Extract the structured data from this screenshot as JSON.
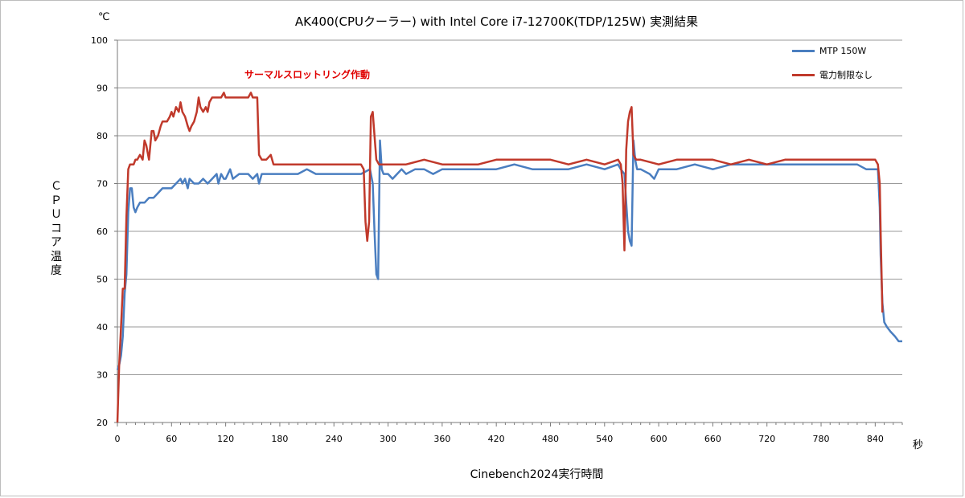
{
  "chart_data": {
    "type": "line",
    "title": "AK400(CPUクーラー) with Intel Core i7-12700K(TDP/125W) 実測結果",
    "xlabel": "Cinebench2024実行時間",
    "ylabel": "ＣＰＵコア温度",
    "x_unit": "秒",
    "y_unit": "℃",
    "xlim": [
      0,
      870
    ],
    "ylim": [
      20,
      100
    ],
    "x_ticks": [
      0,
      60,
      120,
      180,
      240,
      300,
      360,
      420,
      480,
      540,
      600,
      660,
      720,
      780,
      840
    ],
    "y_ticks": [
      20,
      30,
      40,
      50,
      60,
      70,
      80,
      90,
      100
    ],
    "grid": "horizontal",
    "legend_position": "top-right",
    "annotation": "サーマルスロットリング作動",
    "annotation_color": "#e00000",
    "series": [
      {
        "name": "MTP 150W",
        "color": "#4a7ec0",
        "points": [
          [
            0,
            31
          ],
          [
            2,
            32
          ],
          [
            4,
            34
          ],
          [
            6,
            38
          ],
          [
            8,
            47
          ],
          [
            10,
            51
          ],
          [
            12,
            64
          ],
          [
            14,
            69
          ],
          [
            16,
            69
          ],
          [
            18,
            65
          ],
          [
            20,
            64
          ],
          [
            22,
            65
          ],
          [
            25,
            66
          ],
          [
            30,
            66
          ],
          [
            35,
            67
          ],
          [
            40,
            67
          ],
          [
            45,
            68
          ],
          [
            50,
            69
          ],
          [
            55,
            69
          ],
          [
            60,
            69
          ],
          [
            65,
            70
          ],
          [
            70,
            71
          ],
          [
            72,
            70
          ],
          [
            75,
            71
          ],
          [
            78,
            69
          ],
          [
            80,
            71
          ],
          [
            85,
            70
          ],
          [
            90,
            70
          ],
          [
            95,
            71
          ],
          [
            100,
            70
          ],
          [
            105,
            71
          ],
          [
            110,
            72
          ],
          [
            112,
            70
          ],
          [
            115,
            72
          ],
          [
            118,
            71
          ],
          [
            120,
            71
          ],
          [
            125,
            73
          ],
          [
            128,
            71
          ],
          [
            135,
            72
          ],
          [
            145,
            72
          ],
          [
            150,
            71
          ],
          [
            155,
            72
          ],
          [
            157,
            70
          ],
          [
            160,
            72
          ],
          [
            170,
            72
          ],
          [
            180,
            72
          ],
          [
            190,
            72
          ],
          [
            200,
            72
          ],
          [
            210,
            73
          ],
          [
            220,
            72
          ],
          [
            240,
            72
          ],
          [
            260,
            72
          ],
          [
            270,
            72
          ],
          [
            280,
            73
          ],
          [
            283,
            70
          ],
          [
            285,
            60
          ],
          [
            287,
            51
          ],
          [
            289,
            50
          ],
          [
            291,
            79
          ],
          [
            293,
            73
          ],
          [
            295,
            72
          ],
          [
            300,
            72
          ],
          [
            305,
            71
          ],
          [
            310,
            72
          ],
          [
            315,
            73
          ],
          [
            320,
            72
          ],
          [
            330,
            73
          ],
          [
            340,
            73
          ],
          [
            350,
            72
          ],
          [
            360,
            73
          ],
          [
            380,
            73
          ],
          [
            400,
            73
          ],
          [
            420,
            73
          ],
          [
            440,
            74
          ],
          [
            460,
            73
          ],
          [
            480,
            73
          ],
          [
            500,
            73
          ],
          [
            520,
            74
          ],
          [
            540,
            73
          ],
          [
            555,
            74
          ],
          [
            558,
            73
          ],
          [
            562,
            72
          ],
          [
            566,
            60
          ],
          [
            568,
            58
          ],
          [
            570,
            57
          ],
          [
            572,
            79
          ],
          [
            574,
            75
          ],
          [
            576,
            73
          ],
          [
            580,
            73
          ],
          [
            590,
            72
          ],
          [
            595,
            71
          ],
          [
            600,
            73
          ],
          [
            620,
            73
          ],
          [
            640,
            74
          ],
          [
            660,
            73
          ],
          [
            680,
            74
          ],
          [
            700,
            74
          ],
          [
            720,
            74
          ],
          [
            740,
            74
          ],
          [
            760,
            74
          ],
          [
            780,
            74
          ],
          [
            800,
            74
          ],
          [
            820,
            74
          ],
          [
            830,
            73
          ],
          [
            840,
            73
          ],
          [
            843,
            73
          ],
          [
            845,
            65
          ],
          [
            846,
            55
          ],
          [
            848,
            45
          ],
          [
            850,
            41
          ],
          [
            853,
            40
          ],
          [
            857,
            39
          ],
          [
            862,
            38
          ],
          [
            866,
            37
          ],
          [
            870,
            37
          ]
        ]
      },
      {
        "name": "電力制限なし",
        "color": "#c0392b",
        "points": [
          [
            0,
            20
          ],
          [
            2,
            32
          ],
          [
            4,
            40
          ],
          [
            6,
            48
          ],
          [
            8,
            48
          ],
          [
            10,
            63
          ],
          [
            12,
            73
          ],
          [
            14,
            74
          ],
          [
            16,
            74
          ],
          [
            18,
            74
          ],
          [
            20,
            75
          ],
          [
            22,
            75
          ],
          [
            25,
            76
          ],
          [
            28,
            75
          ],
          [
            30,
            79
          ],
          [
            32,
            78
          ],
          [
            35,
            75
          ],
          [
            38,
            81
          ],
          [
            40,
            81
          ],
          [
            42,
            79
          ],
          [
            45,
            80
          ],
          [
            48,
            82
          ],
          [
            50,
            83
          ],
          [
            55,
            83
          ],
          [
            58,
            84
          ],
          [
            60,
            85
          ],
          [
            62,
            84
          ],
          [
            65,
            86
          ],
          [
            68,
            85
          ],
          [
            70,
            87
          ],
          [
            72,
            85
          ],
          [
            75,
            84
          ],
          [
            78,
            82
          ],
          [
            80,
            81
          ],
          [
            82,
            82
          ],
          [
            85,
            83
          ],
          [
            88,
            85
          ],
          [
            90,
            88
          ],
          [
            92,
            86
          ],
          [
            95,
            85
          ],
          [
            98,
            86
          ],
          [
            100,
            85
          ],
          [
            102,
            87
          ],
          [
            105,
            88
          ],
          [
            110,
            88
          ],
          [
            115,
            88
          ],
          [
            118,
            89
          ],
          [
            120,
            88
          ],
          [
            125,
            88
          ],
          [
            130,
            88
          ],
          [
            135,
            88
          ],
          [
            140,
            88
          ],
          [
            145,
            88
          ],
          [
            148,
            89
          ],
          [
            150,
            88
          ],
          [
            155,
            88
          ],
          [
            157,
            76
          ],
          [
            160,
            75
          ],
          [
            165,
            75
          ],
          [
            170,
            76
          ],
          [
            173,
            74
          ],
          [
            175,
            74
          ],
          [
            180,
            74
          ],
          [
            190,
            74
          ],
          [
            200,
            74
          ],
          [
            210,
            74
          ],
          [
            220,
            74
          ],
          [
            240,
            74
          ],
          [
            260,
            74
          ],
          [
            270,
            74
          ],
          [
            273,
            73
          ],
          [
            275,
            62
          ],
          [
            277,
            58
          ],
          [
            279,
            62
          ],
          [
            281,
            84
          ],
          [
            283,
            85
          ],
          [
            285,
            80
          ],
          [
            287,
            75
          ],
          [
            290,
            74
          ],
          [
            300,
            74
          ],
          [
            320,
            74
          ],
          [
            340,
            75
          ],
          [
            360,
            74
          ],
          [
            380,
            74
          ],
          [
            400,
            74
          ],
          [
            420,
            75
          ],
          [
            440,
            75
          ],
          [
            460,
            75
          ],
          [
            480,
            75
          ],
          [
            500,
            74
          ],
          [
            520,
            75
          ],
          [
            540,
            74
          ],
          [
            555,
            75
          ],
          [
            558,
            74
          ],
          [
            560,
            70
          ],
          [
            562,
            56
          ],
          [
            564,
            77
          ],
          [
            566,
            83
          ],
          [
            568,
            85
          ],
          [
            570,
            86
          ],
          [
            572,
            76
          ],
          [
            575,
            75
          ],
          [
            580,
            75
          ],
          [
            600,
            74
          ],
          [
            620,
            75
          ],
          [
            640,
            75
          ],
          [
            660,
            75
          ],
          [
            680,
            74
          ],
          [
            700,
            75
          ],
          [
            720,
            74
          ],
          [
            740,
            75
          ],
          [
            760,
            75
          ],
          [
            780,
            75
          ],
          [
            800,
            75
          ],
          [
            820,
            75
          ],
          [
            830,
            75
          ],
          [
            840,
            75
          ],
          [
            843,
            74
          ],
          [
            845,
            70
          ],
          [
            846,
            60
          ],
          [
            848,
            43
          ]
        ]
      }
    ]
  }
}
